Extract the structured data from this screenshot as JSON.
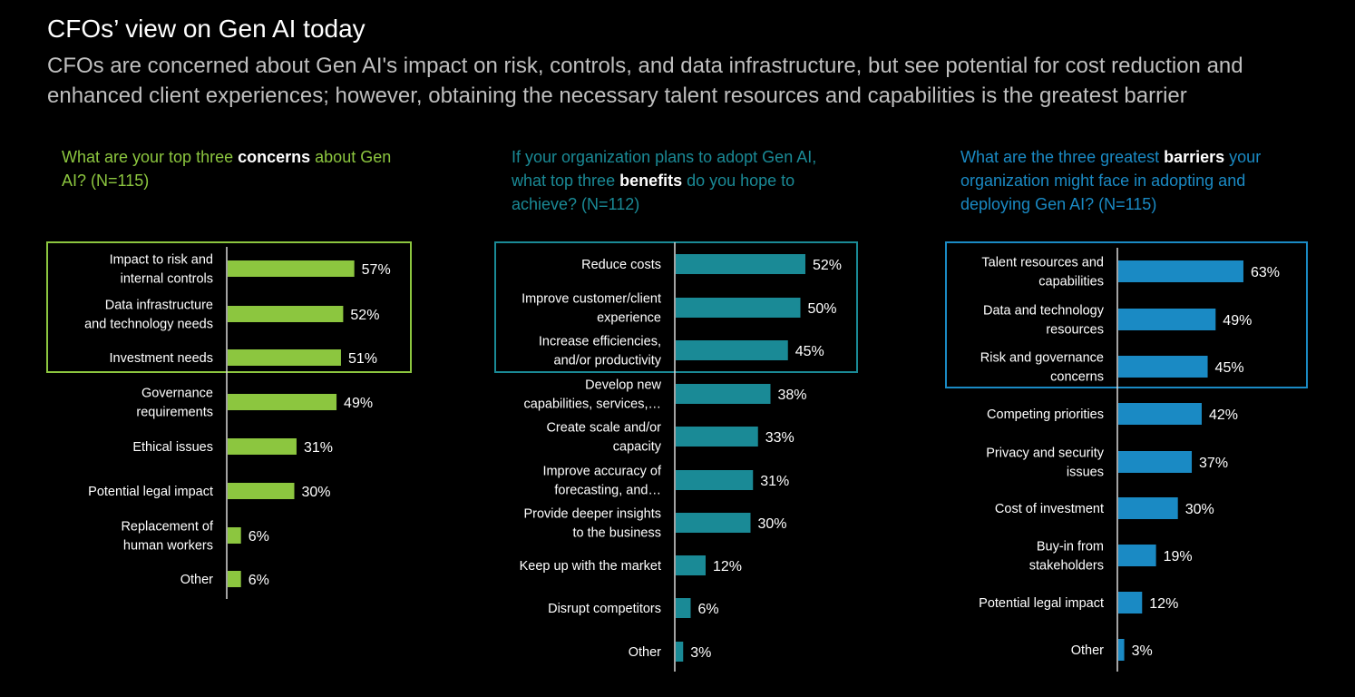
{
  "title": "CFOs’ view on Gen AI today",
  "subtitle": "CFOs are concerned about Gen AI's impact on risk, controls, and data infrastructure, but see potential for cost reduction and enhanced client experiences; however, obtaining the necessary talent resources and capabilities is the greatest barrier",
  "colors": {
    "green": "#8cc63f",
    "teal": "#1a8a96",
    "blue": "#1a8ac4"
  },
  "chart_data": [
    {
      "type": "bar",
      "orientation": "horizontal",
      "question_pre": "What are your top three ",
      "question_bold": "concerns",
      "question_post": " about Gen AI? (N=115)",
      "highlighted_top": 3,
      "unit": "%",
      "categories": [
        [
          "Impact to risk and",
          "internal controls"
        ],
        [
          "Data infrastructure",
          "and technology needs"
        ],
        [
          "Investment needs"
        ],
        [
          "Governance",
          "requirements"
        ],
        [
          "Ethical issues"
        ],
        [
          "Potential legal impact"
        ],
        [
          "Replacement of",
          "human workers"
        ],
        [
          "Other"
        ]
      ],
      "values": [
        57,
        52,
        51,
        49,
        31,
        30,
        6,
        6
      ]
    },
    {
      "type": "bar",
      "orientation": "horizontal",
      "question_pre": "If your organization plans to adopt Gen AI, what top three ",
      "question_bold": "benefits",
      "question_post": " do you hope to achieve? (N=112)",
      "highlighted_top": 3,
      "unit": "%",
      "categories": [
        [
          "Reduce costs"
        ],
        [
          "Improve customer/client",
          "experience"
        ],
        [
          "Increase efficiencies,",
          "and/or productivity"
        ],
        [
          "Develop new",
          "capabilities, services,…"
        ],
        [
          "Create scale and/or",
          "capacity"
        ],
        [
          "Improve accuracy of",
          "forecasting, and…"
        ],
        [
          "Provide deeper insights",
          "to the business"
        ],
        [
          "Keep up with the market"
        ],
        [
          "Disrupt competitors"
        ],
        [
          "Other"
        ]
      ],
      "values": [
        52,
        50,
        45,
        38,
        33,
        31,
        30,
        12,
        6,
        3
      ]
    },
    {
      "type": "bar",
      "orientation": "horizontal",
      "question_pre": "What are the three greatest ",
      "question_bold": "barriers",
      "question_post": " your organization might face in adopting and deploying Gen AI? (N=115)",
      "highlighted_top": 3,
      "unit": "%",
      "categories": [
        [
          "Talent resources and",
          "capabilities"
        ],
        [
          "Data and technology",
          "resources"
        ],
        [
          "Risk and governance",
          "concerns"
        ],
        [
          "Competing priorities"
        ],
        [
          "Privacy and security",
          "issues"
        ],
        [
          "Cost of investment"
        ],
        [
          "Buy-in from",
          "stakeholders"
        ],
        [
          "Potential legal impact"
        ],
        [
          "Other"
        ]
      ],
      "values": [
        63,
        49,
        45,
        42,
        37,
        30,
        19,
        12,
        3
      ]
    }
  ]
}
